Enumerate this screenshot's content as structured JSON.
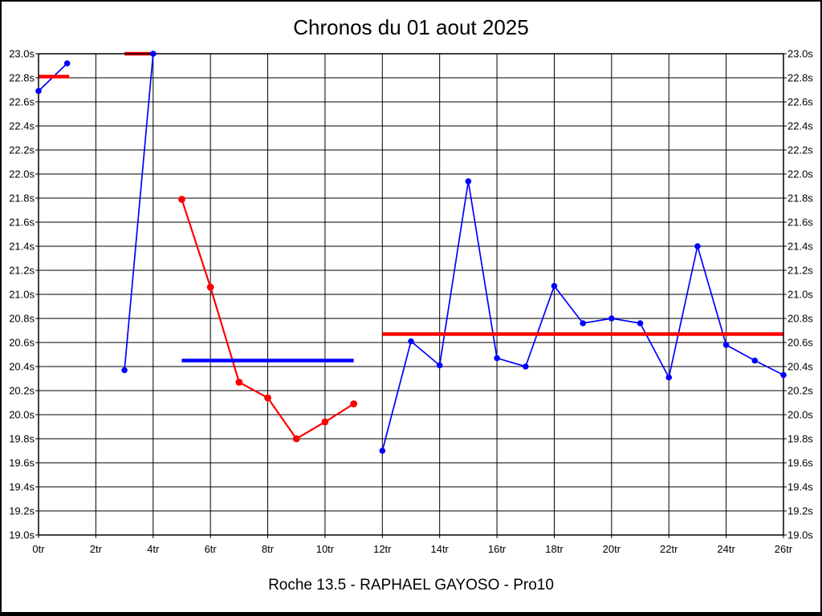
{
  "title": "Chronos du 01 aout 2025",
  "caption": "Roche 13.5 - RAPHAEL GAYOSO - Pro10",
  "colors": {
    "blue_series": "#0000ff",
    "red_series": "#ff0000",
    "grid": "#000000",
    "background": "#ffffff"
  },
  "chart_data": {
    "type": "line",
    "title": "Chronos du 01 aout 2025",
    "caption": "Roche 13.5 - RAPHAEL GAYOSO - Pro10",
    "x_unit": "tr",
    "y_unit": "s",
    "xlim": [
      0,
      26
    ],
    "ylim": [
      19.0,
      23.0
    ],
    "grid": true,
    "legend": "none",
    "x_tick_values": [
      0,
      2,
      4,
      6,
      8,
      10,
      12,
      14,
      16,
      18,
      20,
      22,
      24,
      26
    ],
    "x_tick_labels": [
      "0tr",
      "2tr",
      "4tr",
      "6tr",
      "8tr",
      "10tr",
      "12tr",
      "14tr",
      "16tr",
      "18tr",
      "20tr",
      "22tr",
      "24tr",
      "26tr"
    ],
    "y_tick_values": [
      23.0,
      22.8,
      22.6,
      22.4,
      22.2,
      22.0,
      21.8,
      21.6,
      21.4,
      21.2,
      21.0,
      20.8,
      20.6,
      20.4,
      20.2,
      20.0,
      19.8,
      19.6,
      19.4,
      19.2,
      19.0
    ],
    "y_tick_labels": [
      "23.0s",
      "22.8s",
      "22.6s",
      "22.4s",
      "22.2s",
      "22.0s",
      "21.8s",
      "21.6s",
      "21.4s",
      "21.2s",
      "21.0s",
      "20.8s",
      "20.6s",
      "20.4s",
      "20.2s",
      "20.0s",
      "19.8s",
      "19.6s",
      "19.4s",
      "19.2s",
      "19.0s"
    ],
    "series": [
      {
        "name": "blue-laps-stint-1",
        "color": "#0000ff",
        "line_width": 1.7,
        "marker_radius": 3.8,
        "points": [
          [
            0,
            22.69
          ],
          [
            1,
            22.92
          ]
        ]
      },
      {
        "name": "blue-laps-stint-2",
        "color": "#0000ff",
        "line_width": 1.7,
        "marker_radius": 3.8,
        "points": [
          [
            3,
            20.37
          ],
          [
            4,
            23.0
          ]
        ]
      },
      {
        "name": "blue-laps-stint-3",
        "color": "#0000ff",
        "line_width": 1.7,
        "marker_radius": 3.8,
        "points": [
          [
            12,
            19.7
          ],
          [
            13,
            20.61
          ],
          [
            14,
            20.41
          ],
          [
            15,
            21.94
          ],
          [
            16,
            20.47
          ],
          [
            17,
            20.4
          ],
          [
            18,
            21.07
          ],
          [
            19,
            20.76
          ],
          [
            20,
            20.8
          ],
          [
            21,
            20.76
          ],
          [
            22,
            20.31
          ],
          [
            23,
            21.4
          ],
          [
            24,
            20.58
          ],
          [
            25,
            20.45
          ],
          [
            26,
            20.33
          ]
        ]
      },
      {
        "name": "red-laps-stint",
        "color": "#ff0000",
        "line_width": 2.2,
        "marker_radius": 4.4,
        "points": [
          [
            5,
            21.79
          ],
          [
            6,
            21.06
          ],
          [
            7,
            20.27
          ],
          [
            8,
            20.14
          ],
          [
            9,
            19.8
          ],
          [
            10,
            19.94
          ],
          [
            11,
            20.09
          ]
        ]
      }
    ],
    "average_lines": [
      {
        "name": "average-line-stint-1",
        "color": "#ff0000",
        "y": 22.81,
        "x1": 0,
        "x2": 1.07
      },
      {
        "name": "average-line-stint-2",
        "color": "#ff0000",
        "y": 23.0,
        "x1": 3.0,
        "x2": 4.1
      },
      {
        "name": "average-line-red-stint",
        "color": "#0000ff",
        "y": 20.45,
        "x1": 5.0,
        "x2": 11.0
      },
      {
        "name": "average-line-stint-3",
        "color": "#ff0000",
        "y": 20.67,
        "x1": 12.0,
        "x2": 26.0
      }
    ]
  }
}
